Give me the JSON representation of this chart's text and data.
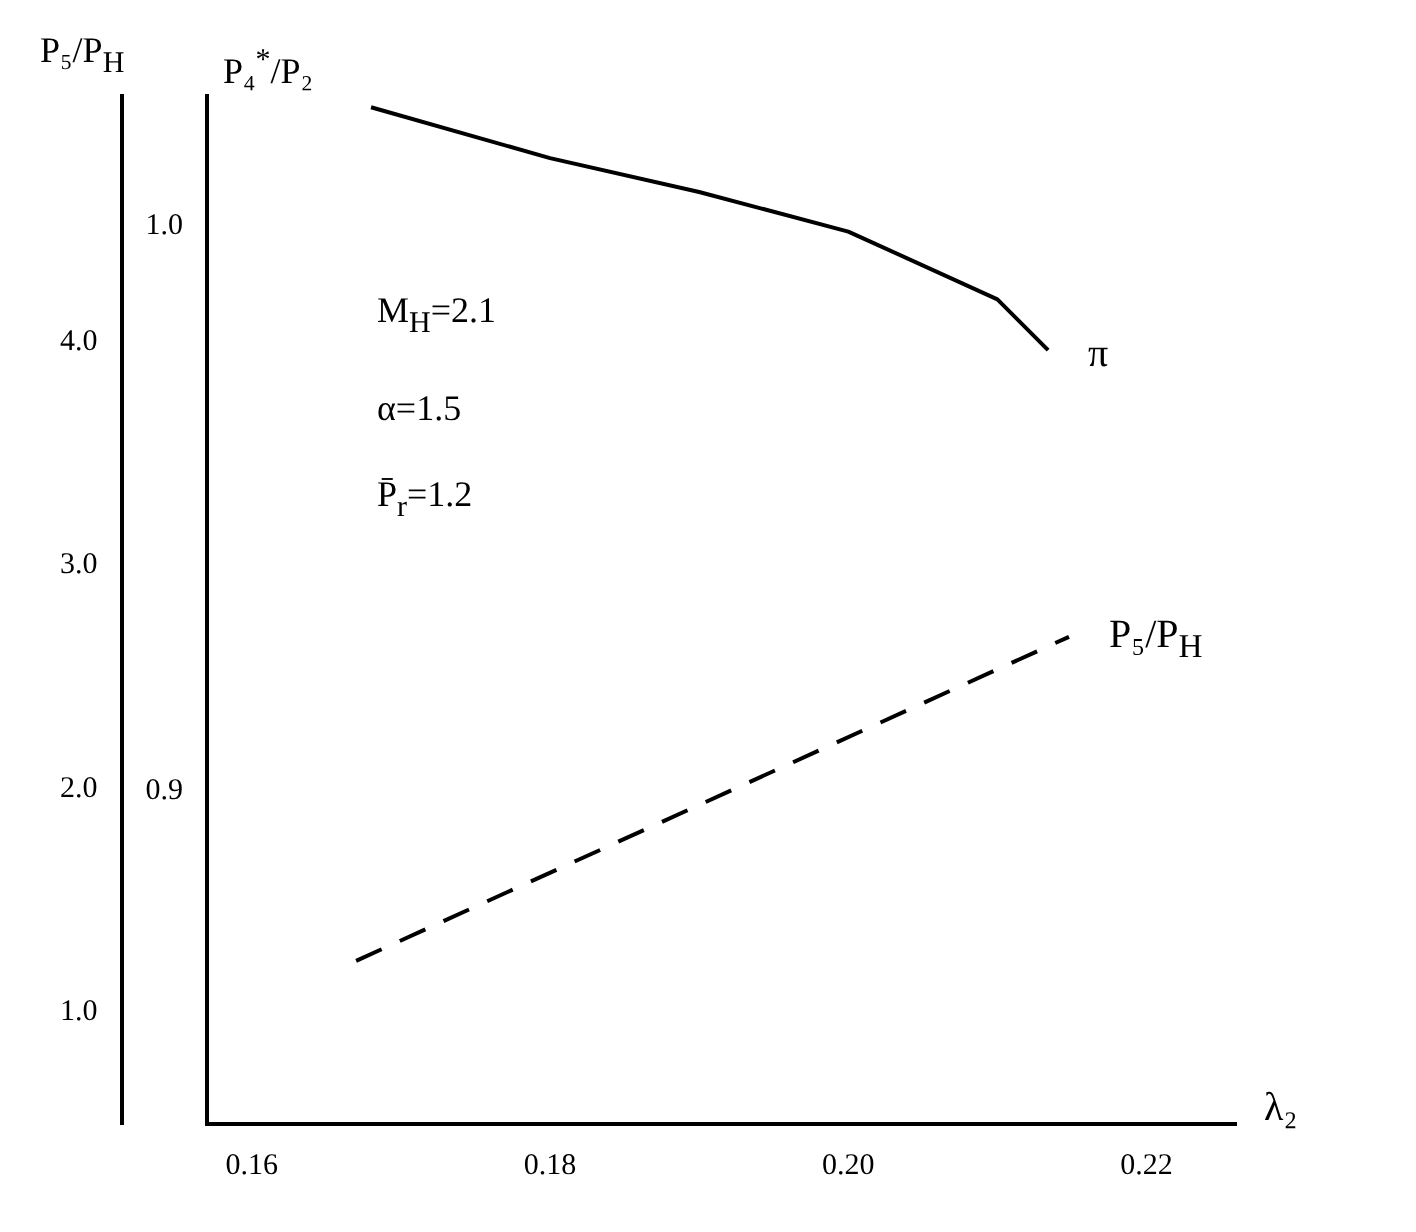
{
  "chart_data": {
    "type": "line",
    "xlabel": "λ₂",
    "ylabel": "P₅/P$_{H}$",
    "y2label": "P₄$^{*}$/P₂",
    "xlim": [
      0.157,
      0.226
    ],
    "xticks": [
      {
        "value": 0.16,
        "label": "0.16"
      },
      {
        "value": 0.18,
        "label": "0.18"
      },
      {
        "value": 0.2,
        "label": "0.20"
      },
      {
        "value": 0.22,
        "label": "0.22"
      }
    ],
    "ylim": [
      0.5,
      5.1
    ],
    "yticks": [
      {
        "value": 1,
        "label": "1.0"
      },
      {
        "value": 2,
        "label": "2.0"
      },
      {
        "value": 3,
        "label": "3.0"
      },
      {
        "value": 4,
        "label": "4.0"
      }
    ],
    "y2lim": [
      0.841,
      1.023
    ],
    "y2ticks": [
      0.9,
      {
        "value": 1,
        "label": "1.0"
      }
    ],
    "series": [
      {
        "name": "π",
        "color": "#000000",
        "axis": "y2",
        "line_style": "solid",
        "x": [
          0.168,
          0.18,
          0.19,
          0.2,
          0.21,
          0.2134
        ],
        "values": [
          1.021,
          1.012,
          1.006,
          0.999,
          0.987,
          0.978
        ]
      },
      {
        "name": "P₅/P$_{H}$",
        "color": "#000000",
        "axis": "y",
        "line_style": "dashed",
        "x": [
          0.167,
          0.2148
        ],
        "values": [
          1.23,
          2.68
        ]
      }
    ],
    "annotations": [
      "M$_{H}$=2.1",
      "α=1.5",
      "P̄$_{r}$=1.2"
    ],
    "grid": false,
    "legend": false
  }
}
